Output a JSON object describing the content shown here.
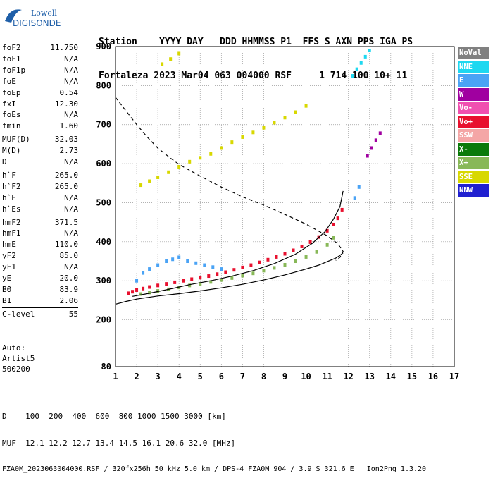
{
  "logo": {
    "line1": "Lowell",
    "line2": "DIGISONDE"
  },
  "header": {
    "labels": "Station    YYYY DAY   DDD HHMMSS P1  FFS S AXN PPS IGA PS",
    "values": "Fortaleza 2023 Mar04 063 004000 RSF     1 714 100 10+ 11"
  },
  "params": [
    {
      "k": "foF2",
      "v": "11.750"
    },
    {
      "k": "foF1",
      "v": "N/A"
    },
    {
      "k": "foF1p",
      "v": "N/A"
    },
    {
      "k": "foE",
      "v": "N/A"
    },
    {
      "k": "foEp",
      "v": "0.54"
    },
    {
      "k": "fxI",
      "v": "12.30"
    },
    {
      "k": "foEs",
      "v": "N/A"
    },
    {
      "k": "fmin",
      "v": "1.60"
    },
    {
      "k": "MUF(D)",
      "v": "32.03"
    },
    {
      "k": "M(D)",
      "v": "2.73"
    },
    {
      "k": "D",
      "v": "N/A"
    },
    {
      "k": "h`F",
      "v": "265.0"
    },
    {
      "k": "h`F2",
      "v": "265.0"
    },
    {
      "k": "h`E",
      "v": "N/A"
    },
    {
      "k": "h`Es",
      "v": "N/A"
    },
    {
      "k": "hmF2",
      "v": "371.5"
    },
    {
      "k": "hmF1",
      "v": "N/A"
    },
    {
      "k": "hmE",
      "v": "110.0"
    },
    {
      "k": "yF2",
      "v": "85.0"
    },
    {
      "k": "yF1",
      "v": "N/A"
    },
    {
      "k": "yE",
      "v": "20.0"
    },
    {
      "k": "B0",
      "v": "83.9"
    },
    {
      "k": "B1",
      "v": "2.06"
    },
    {
      "k": "C-level",
      "v": "55"
    }
  ],
  "auto": {
    "line1": "Auto:",
    "line2": "Artist5",
    "line3": "500200"
  },
  "legend": [
    {
      "label": "NoVal",
      "color": "#808080"
    },
    {
      "label": "NNE",
      "color": "#1ed8f0"
    },
    {
      "label": "E",
      "color": "#4aa3f5"
    },
    {
      "label": "W",
      "color": "#a000a0"
    },
    {
      "label": "Vo-",
      "color": "#f050b0"
    },
    {
      "label": "Vo+",
      "color": "#e8102e"
    },
    {
      "label": "SSW",
      "color": "#f4a6a6"
    },
    {
      "label": "X-",
      "color": "#0a7a0a"
    },
    {
      "label": "X+",
      "color": "#88b858"
    },
    {
      "label": "SSE",
      "color": "#d8d800"
    },
    {
      "label": "NNW",
      "color": "#2020d0"
    }
  ],
  "footer": {
    "line1": "D    100  200  400  600  800 1000 1500 3000 [km]",
    "line2": "MUF  12.1 12.2 12.7 13.4 14.5 16.1 20.6 32.0 [MHz]",
    "line3": "FZA0M_2023063004000.RSF / 320fx256h 50 kHz 5.0 km / DPS-4 FZA0M 904 / 3.9 S 321.6 E   Ion2Png 1.3.20"
  },
  "chart_data": {
    "type": "scatter",
    "xlim": [
      1,
      17
    ],
    "ylim": [
      80,
      900
    ],
    "x_ticks": [
      1,
      2,
      3,
      4,
      5,
      6,
      7,
      8,
      9,
      10,
      11,
      12,
      13,
      14,
      15,
      16,
      17
    ],
    "y_ticks": [
      80,
      200,
      300,
      400,
      500,
      600,
      700,
      800,
      900
    ],
    "grid": true,
    "series": [
      {
        "name": "Vo+",
        "color": "#e8102e",
        "x": [
          1.6,
          1.8,
          2.0,
          2.3,
          2.6,
          3.0,
          3.4,
          3.8,
          4.2,
          4.6,
          5.0,
          5.4,
          5.8,
          6.2,
          6.6,
          7.0,
          7.4,
          7.8,
          8.2,
          8.6,
          9.0,
          9.4,
          9.8,
          10.2,
          10.6,
          11.0,
          11.3,
          11.5,
          11.7
        ],
        "y": [
          268,
          272,
          276,
          280,
          284,
          288,
          292,
          296,
          300,
          304,
          308,
          312,
          317,
          322,
          328,
          334,
          340,
          347,
          354,
          361,
          369,
          378,
          388,
          399,
          412,
          428,
          444,
          460,
          482
        ]
      },
      {
        "name": "X+",
        "color": "#88b858",
        "x": [
          2.2,
          2.6,
          3.0,
          3.5,
          4.0,
          4.5,
          5.0,
          5.5,
          6.0,
          6.5,
          7.0,
          7.5,
          8.0,
          8.5,
          9.0,
          9.5,
          10.0,
          10.5,
          11.0,
          11.3
        ],
        "y": [
          266,
          270,
          274,
          278,
          283,
          288,
          292,
          297,
          302,
          307,
          313,
          319,
          326,
          333,
          341,
          350,
          361,
          374,
          392,
          410
        ]
      },
      {
        "name": "E",
        "color": "#4aa3f5",
        "x": [
          2.0,
          2.3,
          2.6,
          3.0,
          3.4,
          3.7,
          4.0,
          4.4,
          4.8,
          5.2,
          5.6,
          6.0,
          12.3,
          12.5
        ],
        "y": [
          300,
          320,
          330,
          340,
          350,
          355,
          360,
          350,
          345,
          340,
          335,
          330,
          512,
          540
        ]
      },
      {
        "name": "SSE",
        "color": "#d8d800",
        "x": [
          2.2,
          2.6,
          3.0,
          3.5,
          4.0,
          4.5,
          5.0,
          5.5,
          6.0,
          6.5,
          7.0,
          7.5,
          8.0,
          8.5,
          9.0,
          9.5,
          10.0,
          3.2,
          3.6,
          4.0
        ],
        "y": [
          545,
          555,
          565,
          578,
          592,
          605,
          615,
          625,
          640,
          655,
          668,
          680,
          692,
          705,
          718,
          732,
          748,
          855,
          868,
          882
        ]
      },
      {
        "name": "NNE",
        "color": "#1ed8f0",
        "x": [
          12.2,
          12.4,
          12.6,
          12.8,
          13.0
        ],
        "y": [
          825,
          842,
          858,
          874,
          890
        ]
      },
      {
        "name": "W",
        "color": "#a000a0",
        "x": [
          12.9,
          13.1,
          13.3,
          13.5
        ],
        "y": [
          620,
          640,
          660,
          678
        ]
      }
    ],
    "lines": [
      {
        "name": "electron density profile",
        "style": "solid",
        "x": [
          1.0,
          1.5,
          2.0,
          3.0,
          4.0,
          5.0,
          6.0,
          7.0,
          8.0,
          9.0,
          10.0,
          10.6,
          11.0,
          11.4,
          11.6,
          11.75
        ],
        "y": [
          240,
          247,
          253,
          261,
          267,
          274,
          282,
          291,
          302,
          315,
          330,
          340,
          349,
          358,
          365,
          371.5
        ]
      },
      {
        "name": "model trace",
        "style": "dashed",
        "x": [
          1.0,
          1.5,
          2.0,
          2.5,
          3.0,
          3.5,
          4.0,
          5.0,
          6.0,
          7.0,
          8.0,
          9.0,
          10.0,
          11.0,
          11.5,
          11.75,
          11.6,
          11.4
        ],
        "y": [
          770,
          735,
          700,
          668,
          640,
          618,
          598,
          568,
          540,
          515,
          494,
          470,
          445,
          415,
          395,
          375,
          360,
          352
        ]
      },
      {
        "name": "O trace",
        "style": "solid",
        "x": [
          1.8,
          2.5,
          3.5,
          4.5,
          5.5,
          6.5,
          7.5,
          8.5,
          9.5,
          10.3,
          10.9,
          11.3,
          11.6,
          11.75
        ],
        "y": [
          260,
          267,
          278,
          290,
          300,
          312,
          326,
          344,
          368,
          396,
          426,
          458,
          490,
          530
        ]
      }
    ]
  }
}
